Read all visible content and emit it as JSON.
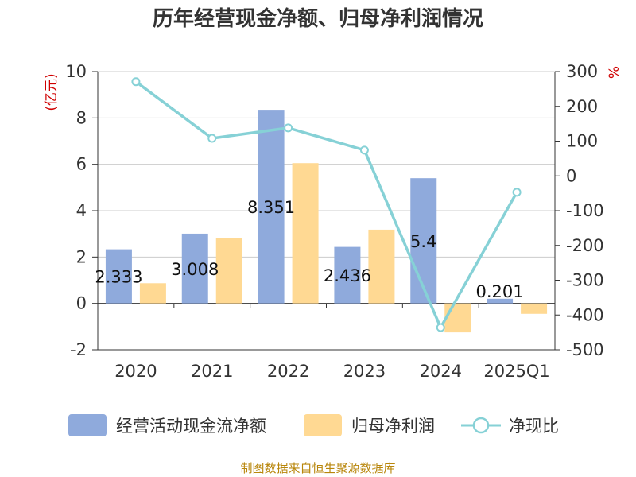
{
  "title": "历年经营现金净额、归母净利润情况",
  "source": "制图数据来自恒生聚源数据库",
  "chart_data": {
    "type": "bar",
    "categories": [
      "2020",
      "2021",
      "2022",
      "2023",
      "2024",
      "2025Q1"
    ],
    "series": [
      {
        "name": "经营活动现金流净额",
        "type": "bar",
        "axis": "left",
        "color": "#8faadc",
        "values": [
          2.333,
          3.008,
          8.351,
          2.436,
          5.4,
          0.201
        ],
        "labels": [
          "2.333",
          "3.008",
          "8.351",
          "2.436",
          "5.4",
          "0.201"
        ]
      },
      {
        "name": "归母净利润",
        "type": "bar",
        "axis": "left",
        "color": "#ffd993",
        "values": [
          0.87,
          2.8,
          6.05,
          3.18,
          -1.25,
          -0.45
        ]
      },
      {
        "name": "净现比",
        "type": "line",
        "axis": "right",
        "color": "#86d1d6",
        "values": [
          271,
          108,
          138,
          74,
          -436,
          -47
        ]
      }
    ],
    "y_left": {
      "unit": "(亿元)",
      "min": -2,
      "max": 10,
      "ticks": [
        -2,
        0,
        2,
        4,
        6,
        8,
        10
      ],
      "tick_labels": [
        "-2",
        "0",
        "2",
        "4",
        "6",
        "8",
        "10"
      ]
    },
    "y_right": {
      "unit": "%",
      "min": -500,
      "max": 300,
      "ticks": [
        -500,
        -400,
        -300,
        -200,
        -100,
        0,
        100,
        200,
        300
      ],
      "tick_labels": [
        "-500",
        "-400",
        "-300",
        "-200",
        "-100",
        "0",
        "100",
        "200",
        "300"
      ]
    },
    "grid": true,
    "legend_position": "bottom"
  }
}
